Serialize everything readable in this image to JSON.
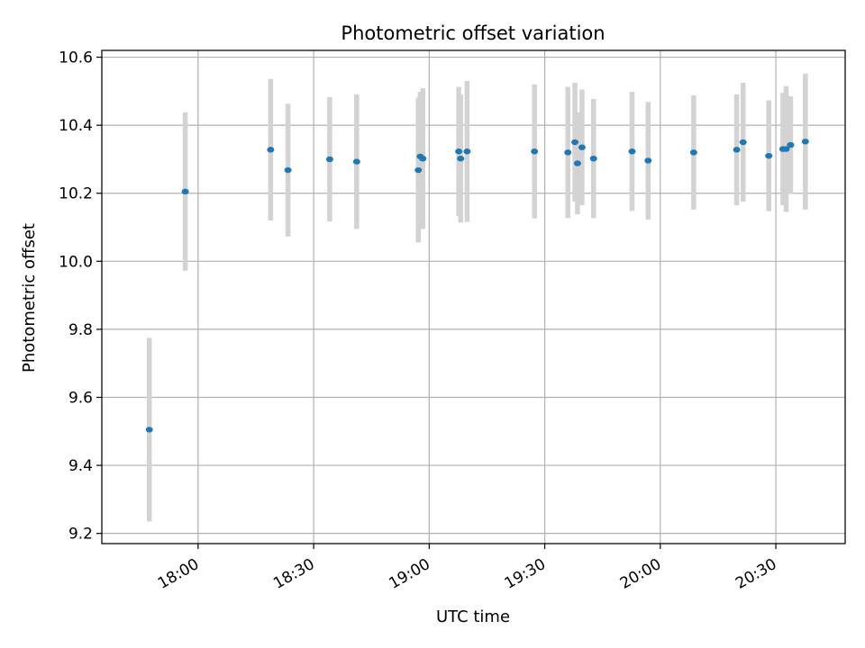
{
  "colors": {
    "point": "#1f77b4",
    "errorbar": "#d3d3d3",
    "grid": "#b0b0b0",
    "axis": "#000000"
  },
  "chart_data": {
    "type": "scatter",
    "title": "Photometric offset variation",
    "xlabel": "UTC time",
    "ylabel": "Photometric offset",
    "grid": true,
    "legend": "none",
    "x_unit": "UTC time (HH:MM)",
    "xlim": [
      "17:35",
      "20:48"
    ],
    "ylim": [
      9.17,
      10.62
    ],
    "x_ticks": [
      "18:00",
      "18:30",
      "19:00",
      "19:30",
      "20:00",
      "20:30"
    ],
    "y_ticks": [
      9.2,
      9.4,
      9.6,
      9.8,
      10.0,
      10.2,
      10.4,
      10.6
    ],
    "y_tick_labels": [
      "9.2",
      "9.4",
      "9.6",
      "9.8",
      "10.0",
      "10.2",
      "10.4",
      "10.6"
    ],
    "series": [
      {
        "points": [
          {
            "x": "17:47:20",
            "y": 9.505,
            "err": 0.27
          },
          {
            "x": "17:56:40",
            "y": 10.205,
            "err": 0.233
          },
          {
            "x": "18:18:50",
            "y": 10.328,
            "err": 0.208
          },
          {
            "x": "18:23:20",
            "y": 10.268,
            "err": 0.195
          },
          {
            "x": "18:34:10",
            "y": 10.3,
            "err": 0.183
          },
          {
            "x": "18:41:10",
            "y": 10.293,
            "err": 0.198
          },
          {
            "x": "18:57:10",
            "y": 10.268,
            "err": 0.213
          },
          {
            "x": "18:57:40",
            "y": 10.308,
            "err": 0.19
          },
          {
            "x": "18:58:20",
            "y": 10.302,
            "err": 0.207
          },
          {
            "x": "19:07:40",
            "y": 10.323,
            "err": 0.19
          },
          {
            "x": "19:08:10",
            "y": 10.302,
            "err": 0.188
          },
          {
            "x": "19:09:50",
            "y": 10.323,
            "err": 0.207
          },
          {
            "x": "19:27:20",
            "y": 10.323,
            "err": 0.197
          },
          {
            "x": "19:36:00",
            "y": 10.32,
            "err": 0.193
          },
          {
            "x": "19:37:50",
            "y": 10.35,
            "err": 0.175
          },
          {
            "x": "19:38:30",
            "y": 10.288,
            "err": 0.15
          },
          {
            "x": "19:39:40",
            "y": 10.335,
            "err": 0.17
          },
          {
            "x": "19:42:40",
            "y": 10.302,
            "err": 0.175
          },
          {
            "x": "19:52:40",
            "y": 10.323,
            "err": 0.175
          },
          {
            "x": "19:56:50",
            "y": 10.296,
            "err": 0.173
          },
          {
            "x": "20:08:40",
            "y": 10.32,
            "err": 0.168
          },
          {
            "x": "20:19:50",
            "y": 10.328,
            "err": 0.163
          },
          {
            "x": "20:21:30",
            "y": 10.35,
            "err": 0.175
          },
          {
            "x": "20:28:10",
            "y": 10.31,
            "err": 0.163
          },
          {
            "x": "20:31:50",
            "y": 10.33,
            "err": 0.165
          },
          {
            "x": "20:32:40",
            "y": 10.33,
            "err": 0.185
          },
          {
            "x": "20:33:50",
            "y": 10.342,
            "err": 0.143
          },
          {
            "x": "20:37:40",
            "y": 10.352,
            "err": 0.2
          }
        ]
      }
    ]
  }
}
